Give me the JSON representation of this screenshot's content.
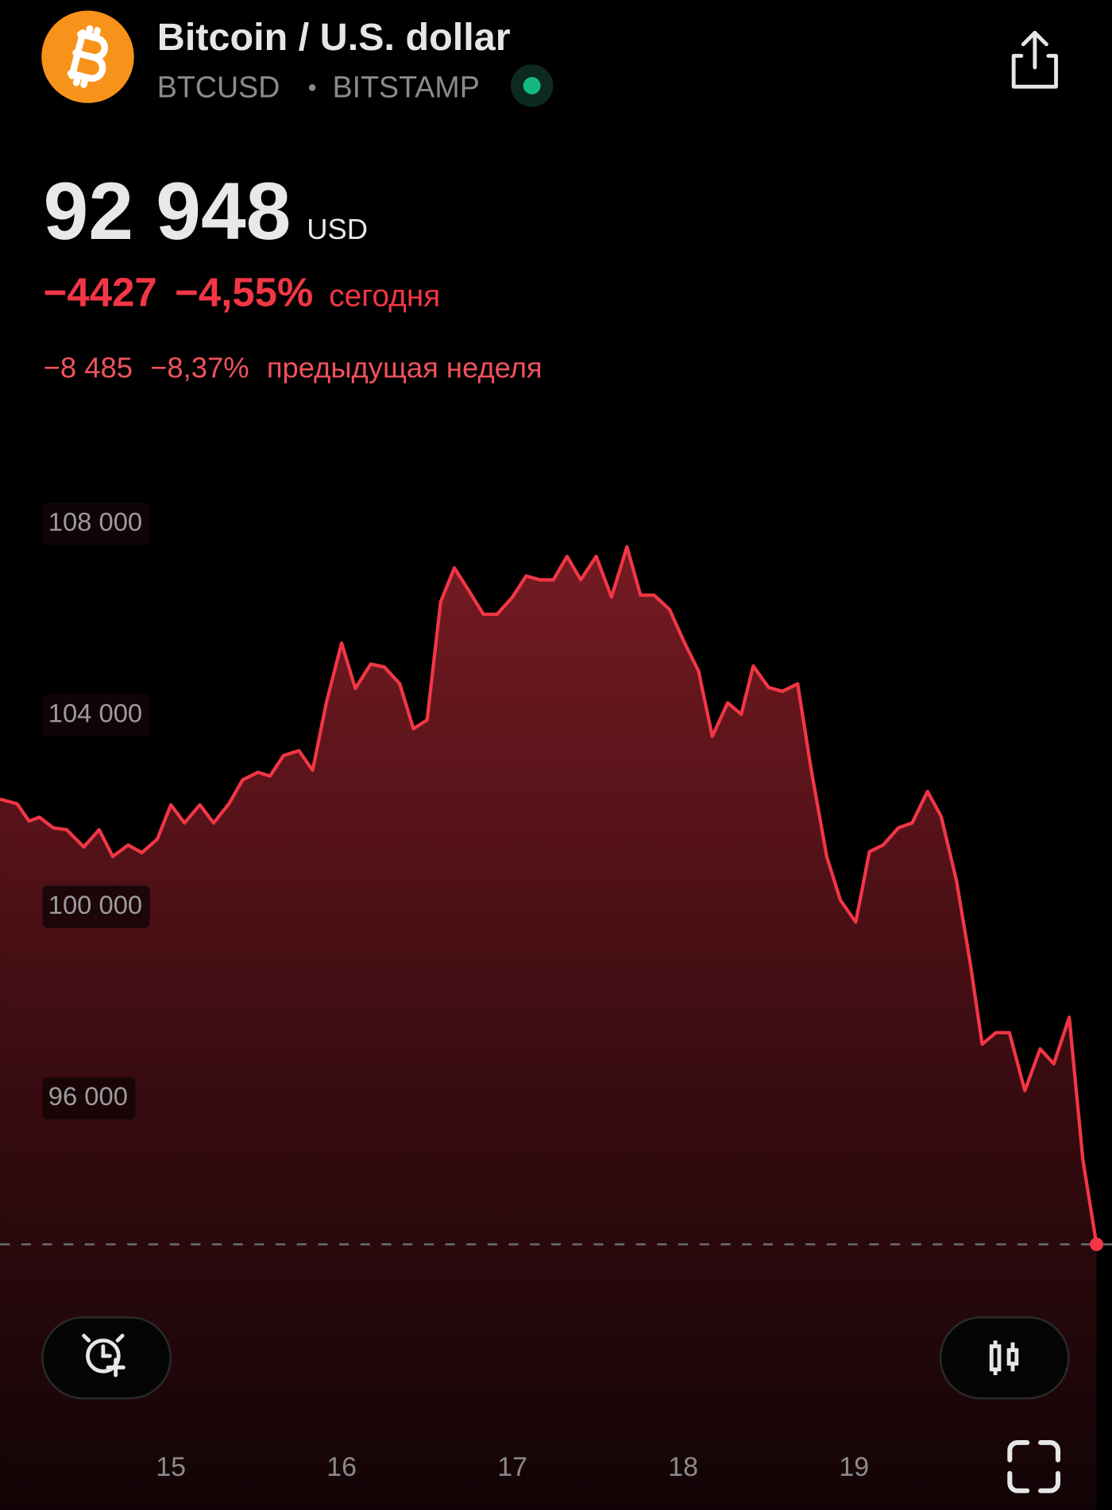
{
  "header": {
    "title": "Bitcoin / U.S. dollar",
    "symbol": "BTCUSD",
    "exchange": "BITSTAMP"
  },
  "quote": {
    "price": "92 948",
    "currency": "USD",
    "today": {
      "change": "−4427",
      "percent": "−4,55%",
      "label": "сегодня"
    },
    "week": {
      "change": "−8 485",
      "percent": "−8,37%",
      "label": "предыдущая неделя"
    }
  },
  "chart_data": {
    "type": "line",
    "color": "#f23645",
    "grid": false,
    "x": [
      14.0,
      14.1,
      14.17,
      14.23,
      14.31,
      14.39,
      14.49,
      14.58,
      14.66,
      14.75,
      14.83,
      14.92,
      15.0,
      15.08,
      15.17,
      15.25,
      15.34,
      15.42,
      15.51,
      15.58,
      15.66,
      15.75,
      15.83,
      15.91,
      16.0,
      16.08,
      16.17,
      16.25,
      16.34,
      16.42,
      16.5,
      16.58,
      16.66,
      16.74,
      16.83,
      16.91,
      17.0,
      17.08,
      17.16,
      17.24,
      17.32,
      17.4,
      17.49,
      17.58,
      17.67,
      17.75,
      17.83,
      17.92,
      18.0,
      18.09,
      18.17,
      18.26,
      18.34,
      18.41,
      18.5,
      18.58,
      18.67,
      18.75,
      18.84,
      18.92,
      19.01,
      19.09,
      19.17,
      19.26,
      19.34,
      19.43,
      19.51,
      19.6,
      19.68,
      19.75,
      19.83,
      19.91,
      20.0,
      20.09,
      20.17,
      20.26,
      20.34,
      20.42
    ],
    "values": [
      102250,
      102150,
      101790,
      101870,
      101650,
      101610,
      101250,
      101610,
      101050,
      101290,
      101130,
      101410,
      102130,
      101750,
      102130,
      101750,
      102150,
      102650,
      102810,
      102730,
      103160,
      103260,
      102850,
      104260,
      105510,
      104560,
      105070,
      105010,
      104660,
      103720,
      103900,
      106370,
      107080,
      106630,
      106110,
      106110,
      106470,
      106910,
      106830,
      106830,
      107320,
      106830,
      107320,
      106470,
      107520,
      106510,
      106510,
      106210,
      105570,
      104920,
      103560,
      104260,
      104020,
      105030,
      104580,
      104500,
      104660,
      102850,
      101050,
      100140,
      99680,
      101150,
      101290,
      101650,
      101750,
      102410,
      101890,
      100540,
      98830,
      97130,
      97370,
      97370,
      96160,
      97030,
      96720,
      97690,
      94710,
      92948
    ],
    "xlim": [
      14.0,
      20.51
    ],
    "xticks": [
      15,
      16,
      17,
      18,
      19
    ],
    "ylim": [
      87600,
      110000
    ],
    "yticks": [
      {
        "value": 96000,
        "label": "96 000"
      },
      {
        "value": 100000,
        "label": "100 000"
      },
      {
        "value": 104000,
        "label": "104 000"
      },
      {
        "value": 108000,
        "label": "108 000"
      }
    ]
  }
}
